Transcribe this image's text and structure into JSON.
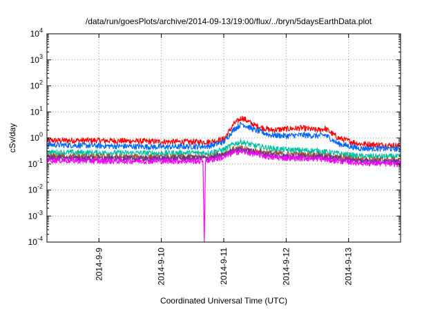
{
  "chart_data": {
    "type": "line",
    "title": "/data/run/goesPlots/archive/2014-09-13/19:00/flux/../bryn/5daysEarthData.plot",
    "xlabel": "Coordinated Universal Time (UTC)",
    "ylabel": "cSv/day",
    "yscale": "log",
    "ylim": [
      0.0001,
      10000
    ],
    "y_ticks": [
      {
        "value": 0.0001,
        "base": "10",
        "exp": "-4"
      },
      {
        "value": 0.001,
        "base": "10",
        "exp": "-3"
      },
      {
        "value": 0.01,
        "base": "10",
        "exp": "-2"
      },
      {
        "value": 0.1,
        "base": "10",
        "exp": "-1"
      },
      {
        "value": 1,
        "base": "10",
        "exp": "0"
      },
      {
        "value": 10,
        "base": "10",
        "exp": "1"
      },
      {
        "value": 100,
        "base": "10",
        "exp": "2"
      },
      {
        "value": 1000,
        "base": "10",
        "exp": "3"
      },
      {
        "value": 10000,
        "base": "10",
        "exp": "4"
      }
    ],
    "xlim": [
      "2014-09-08 04:00",
      "2014-09-13 20:00"
    ],
    "x_ticks": [
      "2014-9-9",
      "2014-9-10",
      "2014-9-11",
      "2014-9-12",
      "2014-9-13"
    ],
    "grid": true,
    "legend": "none",
    "series": [
      {
        "color": "#ff0000",
        "points": [
          [
            "2014-09-08 04:00",
            0.8
          ],
          [
            "2014-09-09 00:00",
            0.8
          ],
          [
            "2014-09-10 00:00",
            0.72
          ],
          [
            "2014-09-10 18:00",
            0.7
          ],
          [
            "2014-09-11 00:00",
            0.9
          ],
          [
            "2014-09-11 04:00",
            3.5
          ],
          [
            "2014-09-11 07:00",
            6.0
          ],
          [
            "2014-09-11 12:00",
            3.0
          ],
          [
            "2014-09-11 18:00",
            2.0
          ],
          [
            "2014-09-12 00:00",
            2.2
          ],
          [
            "2014-09-12 06:00",
            2.4
          ],
          [
            "2014-09-12 12:00",
            2.0
          ],
          [
            "2014-09-12 15:00",
            2.3
          ],
          [
            "2014-09-12 20:00",
            1.0
          ],
          [
            "2014-09-13 04:00",
            0.6
          ],
          [
            "2014-09-13 20:00",
            0.5
          ]
        ]
      },
      {
        "color": "#0066ff",
        "points": [
          [
            "2014-09-08 04:00",
            0.55
          ],
          [
            "2014-09-09 00:00",
            0.5
          ],
          [
            "2014-09-10 00:00",
            0.45
          ],
          [
            "2014-09-10 18:00",
            0.48
          ],
          [
            "2014-09-11 00:00",
            0.7
          ],
          [
            "2014-09-11 04:00",
            2.2
          ],
          [
            "2014-09-11 07:00",
            3.5
          ],
          [
            "2014-09-11 12:00",
            2.0
          ],
          [
            "2014-09-11 18:00",
            1.3
          ],
          [
            "2014-09-12 00:00",
            1.2
          ],
          [
            "2014-09-12 06:00",
            1.3
          ],
          [
            "2014-09-12 12:00",
            1.2
          ],
          [
            "2014-09-12 15:00",
            1.3
          ],
          [
            "2014-09-12 20:00",
            0.6
          ],
          [
            "2014-09-13 04:00",
            0.4
          ],
          [
            "2014-09-13 20:00",
            0.38
          ]
        ]
      },
      {
        "color": "#00c0a0",
        "points": [
          [
            "2014-09-08 04:00",
            0.28
          ],
          [
            "2014-09-09 00:00",
            0.27
          ],
          [
            "2014-09-10 00:00",
            0.26
          ],
          [
            "2014-09-10 18:00",
            0.27
          ],
          [
            "2014-09-11 00:00",
            0.35
          ],
          [
            "2014-09-11 04:00",
            0.6
          ],
          [
            "2014-09-11 07:00",
            0.7
          ],
          [
            "2014-09-11 12:00",
            0.5
          ],
          [
            "2014-09-11 18:00",
            0.4
          ],
          [
            "2014-09-12 00:00",
            0.35
          ],
          [
            "2014-09-12 12:00",
            0.32
          ],
          [
            "2014-09-12 20:00",
            0.25
          ],
          [
            "2014-09-13 04:00",
            0.2
          ],
          [
            "2014-09-13 20:00",
            0.19
          ]
        ]
      },
      {
        "color": "#a0522d",
        "points": [
          [
            "2014-09-08 04:00",
            0.2
          ],
          [
            "2014-09-09 00:00",
            0.19
          ],
          [
            "2014-09-10 00:00",
            0.18
          ],
          [
            "2014-09-10 18:00",
            0.19
          ],
          [
            "2014-09-11 00:00",
            0.25
          ],
          [
            "2014-09-11 04:00",
            0.38
          ],
          [
            "2014-09-11 07:00",
            0.4
          ],
          [
            "2014-09-11 12:00",
            0.32
          ],
          [
            "2014-09-11 18:00",
            0.26
          ],
          [
            "2014-09-12 00:00",
            0.24
          ],
          [
            "2014-09-12 12:00",
            0.22
          ],
          [
            "2014-09-12 20:00",
            0.18
          ],
          [
            "2014-09-13 04:00",
            0.15
          ],
          [
            "2014-09-13 20:00",
            0.14
          ]
        ]
      },
      {
        "color": "#663399",
        "points": [
          [
            "2014-09-08 04:00",
            0.17
          ],
          [
            "2014-09-09 00:00",
            0.16
          ],
          [
            "2014-09-10 00:00",
            0.16
          ],
          [
            "2014-09-10 18:00",
            0.17
          ],
          [
            "2014-09-11 00:00",
            0.22
          ],
          [
            "2014-09-11 04:00",
            0.33
          ],
          [
            "2014-09-11 07:00",
            0.35
          ],
          [
            "2014-09-11 12:00",
            0.28
          ],
          [
            "2014-09-11 18:00",
            0.22
          ],
          [
            "2014-09-12 00:00",
            0.2
          ],
          [
            "2014-09-12 12:00",
            0.19
          ],
          [
            "2014-09-12 20:00",
            0.16
          ],
          [
            "2014-09-13 04:00",
            0.13
          ],
          [
            "2014-09-13 20:00",
            0.12
          ]
        ]
      },
      {
        "color": "#ff00ff",
        "points": [
          [
            "2014-09-08 04:00",
            0.14
          ],
          [
            "2014-09-09 00:00",
            0.13
          ],
          [
            "2014-09-10 00:00",
            0.13
          ],
          [
            "2014-09-10 16:00",
            0.13
          ],
          [
            "2014-09-10 16:30",
            0.0001
          ],
          [
            "2014-09-10 17:00",
            0.13
          ],
          [
            "2014-09-11 00:00",
            0.18
          ],
          [
            "2014-09-11 04:00",
            0.28
          ],
          [
            "2014-09-11 07:00",
            0.3
          ],
          [
            "2014-09-11 12:00",
            0.24
          ],
          [
            "2014-09-11 18:00",
            0.18
          ],
          [
            "2014-09-12 00:00",
            0.17
          ],
          [
            "2014-09-12 12:00",
            0.16
          ],
          [
            "2014-09-12 20:00",
            0.13
          ],
          [
            "2014-09-13 04:00",
            0.11
          ],
          [
            "2014-09-13 20:00",
            0.1
          ]
        ]
      }
    ]
  }
}
